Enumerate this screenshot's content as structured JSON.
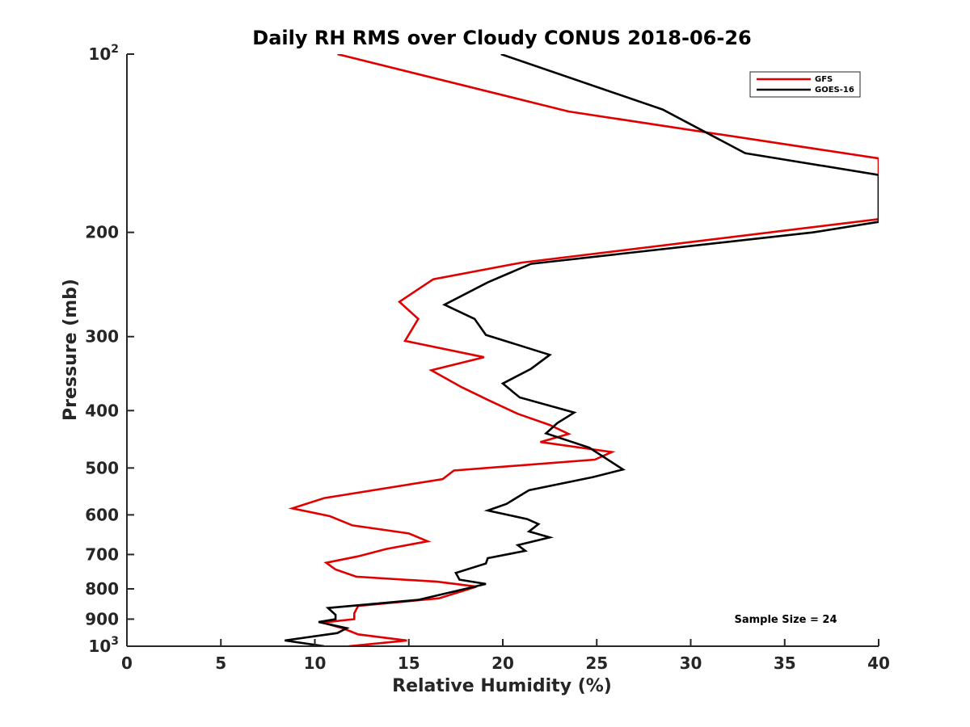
{
  "chart_data": {
    "type": "line",
    "title": "Daily RH RMS over Cloudy CONUS 2018-06-26",
    "xlabel": "Relative Humidity (%)",
    "ylabel": "Pressure (mb)",
    "xlim": [
      0,
      40
    ],
    "ylim": [
      100,
      1000
    ],
    "y_scale": "log",
    "y_reversed": true,
    "grid": false,
    "legend_position": "top-right",
    "x_ticks": [
      0,
      5,
      10,
      15,
      20,
      25,
      30,
      35,
      40
    ],
    "y_ticks": [
      {
        "value": 100,
        "base": "10",
        "exp": "2"
      },
      {
        "value": 200,
        "label": "200"
      },
      {
        "value": 300,
        "label": "300"
      },
      {
        "value": 400,
        "label": "400"
      },
      {
        "value": 500,
        "label": "500"
      },
      {
        "value": 600,
        "label": "600"
      },
      {
        "value": 700,
        "label": "700"
      },
      {
        "value": 800,
        "label": "800"
      },
      {
        "value": 900,
        "label": "900"
      },
      {
        "value": 1000,
        "base": "10",
        "exp": "3"
      }
    ],
    "series": [
      {
        "name": "GFS",
        "color": "#e00000",
        "points": [
          [
            11.2,
            100
          ],
          [
            23.5,
            125
          ],
          [
            40,
            150
          ],
          [
            40,
            190
          ],
          [
            21.0,
            225
          ],
          [
            16.3,
            240
          ],
          [
            14.5,
            262
          ],
          [
            15.5,
            280
          ],
          [
            14.8,
            305
          ],
          [
            19.0,
            325
          ],
          [
            16.2,
            342
          ],
          [
            17.8,
            365
          ],
          [
            19.3,
            385
          ],
          [
            20.8,
            405
          ],
          [
            22.5,
            423
          ],
          [
            23.5,
            438
          ],
          [
            22.0,
            452
          ],
          [
            25.8,
            470
          ],
          [
            24.9,
            484
          ],
          [
            17.4,
            505
          ],
          [
            16.8,
            522
          ],
          [
            10.5,
            562
          ],
          [
            8.8,
            585
          ],
          [
            10.8,
            603
          ],
          [
            12.0,
            625
          ],
          [
            15.0,
            645
          ],
          [
            16.0,
            665
          ],
          [
            13.8,
            685
          ],
          [
            12.3,
            705
          ],
          [
            10.6,
            723
          ],
          [
            11.1,
            742
          ],
          [
            12.2,
            763
          ],
          [
            16.5,
            778
          ],
          [
            18.6,
            793
          ],
          [
            16.6,
            830
          ],
          [
            12.3,
            855
          ],
          [
            12.1,
            880
          ],
          [
            12.1,
            900
          ],
          [
            10.4,
            912
          ],
          [
            11.5,
            933
          ],
          [
            12.3,
            955
          ],
          [
            14.9,
            978
          ],
          [
            11.8,
            1000
          ]
        ]
      },
      {
        "name": "GOES-16",
        "color": "#000000",
        "points": [
          [
            19.9,
            100
          ],
          [
            28.5,
            124
          ],
          [
            32.9,
            147
          ],
          [
            40,
            160
          ],
          [
            40,
            192
          ],
          [
            36.5,
            200
          ],
          [
            21.5,
            226
          ],
          [
            19.2,
            243
          ],
          [
            16.9,
            265
          ],
          [
            18.5,
            280
          ],
          [
            19.1,
            298
          ],
          [
            22.5,
            322
          ],
          [
            21.5,
            340
          ],
          [
            20.0,
            360
          ],
          [
            20.9,
            380
          ],
          [
            23.8,
            403
          ],
          [
            22.9,
            420
          ],
          [
            22.3,
            437
          ],
          [
            24.6,
            462
          ],
          [
            26.4,
            503
          ],
          [
            24.8,
            518
          ],
          [
            21.4,
            545
          ],
          [
            20.2,
            575
          ],
          [
            19.2,
            590
          ],
          [
            21.3,
            610
          ],
          [
            21.9,
            622
          ],
          [
            21.4,
            640
          ],
          [
            22.5,
            655
          ],
          [
            20.8,
            675
          ],
          [
            21.2,
            690
          ],
          [
            19.2,
            710
          ],
          [
            19.1,
            725
          ],
          [
            17.5,
            752
          ],
          [
            17.7,
            772
          ],
          [
            19.1,
            785
          ],
          [
            18.0,
            800
          ],
          [
            15.5,
            835
          ],
          [
            10.7,
            862
          ],
          [
            11.1,
            885
          ],
          [
            11.1,
            900
          ],
          [
            10.2,
            910
          ],
          [
            11.7,
            932
          ],
          [
            11.2,
            950
          ],
          [
            8.4,
            978
          ],
          [
            10.5,
            1000
          ]
        ]
      }
    ],
    "annotations": [
      "Sample Size = 24"
    ]
  }
}
